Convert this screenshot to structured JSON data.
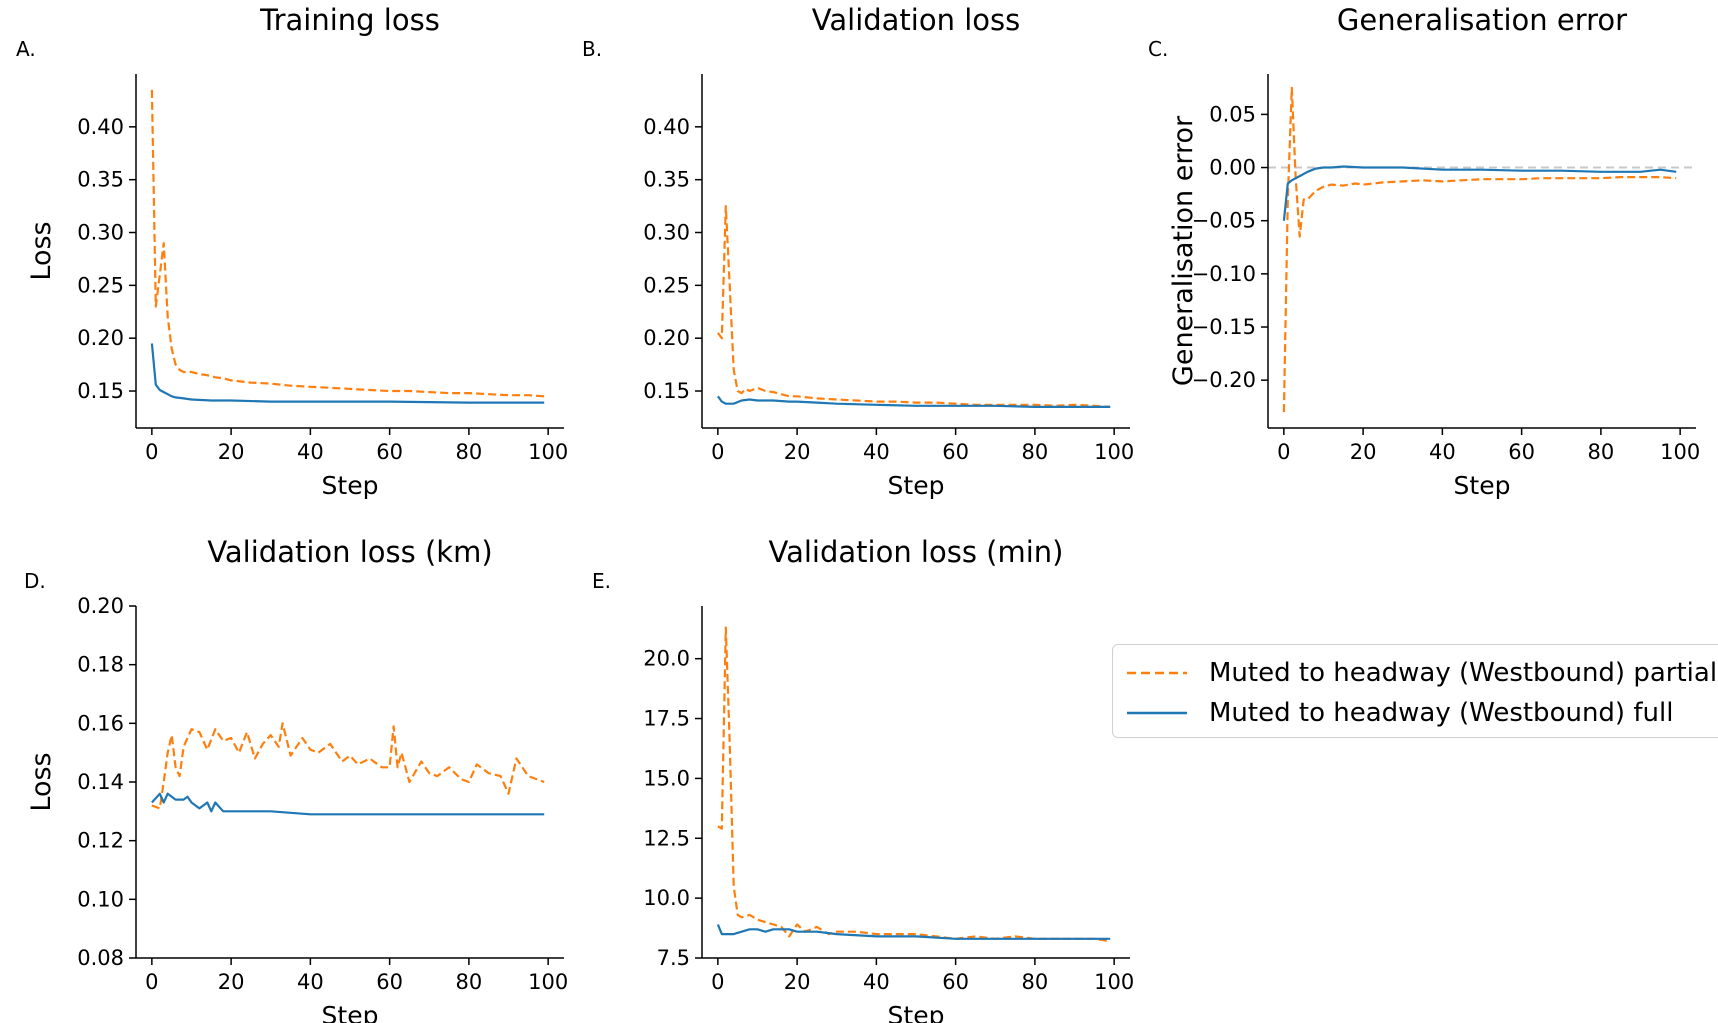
{
  "chart_data": [
    {
      "type": "line",
      "panel_label": "A.",
      "title": "Training loss",
      "xlabel": "Step",
      "ylabel": "Loss",
      "xlim": [
        -4,
        104
      ],
      "ylim": [
        0.115,
        0.45
      ],
      "xticks": [
        0,
        20,
        40,
        60,
        80,
        100
      ],
      "yticks": [
        0.15,
        0.2,
        0.25,
        0.3,
        0.35,
        0.4
      ],
      "ytick_labels": [
        "0.15",
        "0.20",
        "0.25",
        "0.30",
        "0.35",
        "0.40"
      ],
      "xtick_labels": [
        "0",
        "20",
        "40",
        "60",
        "80",
        "100"
      ],
      "series": [
        {
          "name": "Muted to headway (Westbound) partial",
          "color": "#ff7f0e",
          "dashed": true,
          "x": [
            0,
            1,
            2,
            3,
            4,
            5,
            6,
            7,
            8,
            10,
            12,
            14,
            16,
            18,
            20,
            25,
            30,
            35,
            40,
            45,
            50,
            55,
            60,
            65,
            70,
            75,
            80,
            85,
            90,
            95,
            99
          ],
          "y": [
            0.435,
            0.23,
            0.26,
            0.29,
            0.22,
            0.19,
            0.175,
            0.17,
            0.168,
            0.168,
            0.166,
            0.165,
            0.163,
            0.162,
            0.16,
            0.158,
            0.157,
            0.155,
            0.154,
            0.153,
            0.152,
            0.151,
            0.15,
            0.15,
            0.149,
            0.148,
            0.148,
            0.147,
            0.146,
            0.146,
            0.145
          ]
        },
        {
          "name": "Muted to headway (Westbound) full",
          "color": "#1f77b4",
          "dashed": false,
          "x": [
            0,
            1,
            2,
            3,
            4,
            5,
            6,
            8,
            10,
            15,
            20,
            30,
            40,
            60,
            80,
            99
          ],
          "y": [
            0.195,
            0.156,
            0.151,
            0.149,
            0.147,
            0.145,
            0.144,
            0.143,
            0.142,
            0.141,
            0.141,
            0.14,
            0.14,
            0.14,
            0.139,
            0.139
          ]
        }
      ]
    },
    {
      "type": "line",
      "panel_label": "B.",
      "title": "Validation loss",
      "xlabel": "Step",
      "ylabel": "",
      "xlim": [
        -4,
        104
      ],
      "ylim": [
        0.115,
        0.45
      ],
      "xticks": [
        0,
        20,
        40,
        60,
        80,
        100
      ],
      "yticks": [
        0.15,
        0.2,
        0.25,
        0.3,
        0.35,
        0.4
      ],
      "ytick_labels": [
        "0.15",
        "0.20",
        "0.25",
        "0.30",
        "0.35",
        "0.40"
      ],
      "xtick_labels": [
        "0",
        "20",
        "40",
        "60",
        "80",
        "100"
      ],
      "series": [
        {
          "name": "Muted to headway (Westbound) partial",
          "color": "#ff7f0e",
          "dashed": true,
          "x": [
            0,
            1,
            2,
            3,
            4,
            5,
            6,
            7,
            8,
            10,
            12,
            14,
            16,
            18,
            20,
            25,
            30,
            35,
            40,
            45,
            50,
            55,
            60,
            65,
            70,
            75,
            80,
            85,
            90,
            95,
            99
          ],
          "y": [
            0.205,
            0.2,
            0.325,
            0.25,
            0.17,
            0.15,
            0.148,
            0.152,
            0.15,
            0.153,
            0.15,
            0.149,
            0.147,
            0.145,
            0.145,
            0.143,
            0.142,
            0.141,
            0.14,
            0.14,
            0.139,
            0.139,
            0.138,
            0.137,
            0.137,
            0.137,
            0.137,
            0.136,
            0.137,
            0.136,
            0.135
          ]
        },
        {
          "name": "Muted to headway (Westbound) full",
          "color": "#1f77b4",
          "dashed": false,
          "x": [
            0,
            1,
            2,
            4,
            6,
            8,
            10,
            14,
            18,
            20,
            25,
            30,
            40,
            50,
            60,
            70,
            80,
            90,
            99
          ],
          "y": [
            0.145,
            0.14,
            0.138,
            0.138,
            0.141,
            0.142,
            0.141,
            0.141,
            0.14,
            0.14,
            0.139,
            0.138,
            0.137,
            0.136,
            0.136,
            0.136,
            0.135,
            0.135,
            0.135
          ]
        }
      ]
    },
    {
      "type": "line",
      "panel_label": "C.",
      "title": "Generalisation error",
      "xlabel": "Step",
      "ylabel": "Generalisation error",
      "xlim": [
        -4,
        104
      ],
      "ylim": [
        -0.245,
        0.088
      ],
      "xticks": [
        0,
        20,
        40,
        60,
        80,
        100
      ],
      "yticks": [
        -0.2,
        -0.15,
        -0.1,
        -0.05,
        0.0,
        0.05
      ],
      "ytick_labels": [
        "−0.20",
        "−0.15",
        "−0.10",
        "−0.05",
        "0.00",
        "0.05"
      ],
      "xtick_labels": [
        "0",
        "20",
        "40",
        "60",
        "80",
        "100"
      ],
      "reference_line": 0,
      "series": [
        {
          "name": "Muted to headway (Westbound) partial",
          "color": "#ff7f0e",
          "dashed": true,
          "x": [
            0,
            1,
            2,
            3,
            4,
            5,
            6,
            8,
            10,
            12,
            15,
            18,
            20,
            25,
            30,
            35,
            40,
            45,
            50,
            55,
            60,
            65,
            70,
            75,
            80,
            85,
            90,
            95,
            99
          ],
          "y": [
            -0.23,
            -0.03,
            0.075,
            -0.01,
            -0.065,
            -0.03,
            -0.03,
            -0.022,
            -0.018,
            -0.016,
            -0.017,
            -0.015,
            -0.016,
            -0.014,
            -0.013,
            -0.012,
            -0.013,
            -0.012,
            -0.011,
            -0.011,
            -0.011,
            -0.01,
            -0.01,
            -0.01,
            -0.01,
            -0.009,
            -0.009,
            -0.009,
            -0.01
          ]
        },
        {
          "name": "Muted to headway (Westbound) full",
          "color": "#1f77b4",
          "dashed": false,
          "x": [
            0,
            1,
            2,
            4,
            6,
            8,
            10,
            12,
            15,
            20,
            25,
            30,
            40,
            50,
            60,
            70,
            80,
            90,
            95,
            99
          ],
          "y": [
            -0.05,
            -0.015,
            -0.012,
            -0.008,
            -0.004,
            -0.001,
            0.0,
            0.0,
            0.001,
            0.0,
            0.0,
            0.0,
            -0.002,
            -0.002,
            -0.003,
            -0.003,
            -0.004,
            -0.004,
            -0.002,
            -0.004
          ]
        }
      ]
    },
    {
      "type": "line",
      "panel_label": "D.",
      "title": "Validation loss (km)",
      "xlabel": "Step",
      "ylabel": "Loss",
      "xlim": [
        -4,
        104
      ],
      "ylim": [
        0.08,
        0.2
      ],
      "xticks": [
        0,
        20,
        40,
        60,
        80,
        100
      ],
      "yticks": [
        0.08,
        0.1,
        0.12,
        0.14,
        0.16,
        0.18,
        0.2
      ],
      "ytick_labels": [
        "0.08",
        "0.10",
        "0.12",
        "0.14",
        "0.16",
        "0.18",
        "0.20"
      ],
      "xtick_labels": [
        "0",
        "20",
        "40",
        "60",
        "80",
        "100"
      ],
      "series": [
        {
          "name": "Muted to headway (Westbound) partial",
          "color": "#ff7f0e",
          "dashed": true,
          "x": [
            0,
            2,
            3,
            4,
            5,
            6,
            7,
            8,
            9,
            10,
            12,
            14,
            16,
            18,
            20,
            22,
            24,
            26,
            28,
            30,
            32,
            33,
            35,
            38,
            40,
            42,
            45,
            48,
            50,
            52,
            55,
            58,
            60,
            61,
            62,
            63,
            65,
            68,
            70,
            72,
            75,
            78,
            80,
            82,
            85,
            88,
            90,
            92,
            95,
            99
          ],
          "y": [
            0.132,
            0.131,
            0.14,
            0.15,
            0.156,
            0.145,
            0.142,
            0.152,
            0.155,
            0.158,
            0.157,
            0.151,
            0.158,
            0.154,
            0.155,
            0.15,
            0.157,
            0.148,
            0.153,
            0.156,
            0.152,
            0.16,
            0.149,
            0.155,
            0.151,
            0.15,
            0.153,
            0.147,
            0.149,
            0.146,
            0.148,
            0.145,
            0.145,
            0.159,
            0.145,
            0.15,
            0.14,
            0.147,
            0.143,
            0.142,
            0.145,
            0.141,
            0.14,
            0.146,
            0.143,
            0.142,
            0.136,
            0.148,
            0.142,
            0.14
          ]
        },
        {
          "name": "Muted to headway (Westbound) full",
          "color": "#1f77b4",
          "dashed": false,
          "x": [
            0,
            2,
            3,
            4,
            6,
            8,
            9,
            10,
            12,
            14,
            15,
            16,
            18,
            20,
            25,
            30,
            40,
            50,
            60,
            70,
            80,
            90,
            99
          ],
          "y": [
            0.133,
            0.136,
            0.133,
            0.136,
            0.134,
            0.134,
            0.135,
            0.133,
            0.131,
            0.133,
            0.13,
            0.133,
            0.13,
            0.13,
            0.13,
            0.13,
            0.129,
            0.129,
            0.129,
            0.129,
            0.129,
            0.129,
            0.129
          ]
        }
      ]
    },
    {
      "type": "line",
      "panel_label": "E.",
      "title": "Validation loss (min)",
      "xlabel": "Step",
      "ylabel": "",
      "xlim": [
        -4,
        104
      ],
      "ylim": [
        7.5,
        22.2
      ],
      "xticks": [
        0,
        20,
        40,
        60,
        80,
        100
      ],
      "yticks": [
        7.5,
        10.0,
        12.5,
        15.0,
        17.5,
        20.0
      ],
      "ytick_labels": [
        "7.5",
        "10.0",
        "12.5",
        "15.0",
        "17.5",
        "20.0"
      ],
      "xtick_labels": [
        "0",
        "20",
        "40",
        "60",
        "80",
        "100"
      ],
      "series": [
        {
          "name": "Muted to headway (Westbound) partial",
          "color": "#ff7f0e",
          "dashed": true,
          "x": [
            0,
            1,
            2,
            3,
            4,
            5,
            6,
            8,
            10,
            12,
            14,
            16,
            18,
            20,
            22,
            25,
            28,
            30,
            35,
            40,
            45,
            50,
            55,
            60,
            65,
            70,
            75,
            80,
            85,
            90,
            95,
            99
          ],
          "y": [
            13.0,
            12.9,
            21.3,
            16.5,
            10.5,
            9.3,
            9.2,
            9.3,
            9.1,
            9.0,
            8.9,
            8.8,
            8.4,
            8.9,
            8.6,
            8.8,
            8.5,
            8.6,
            8.6,
            8.5,
            8.5,
            8.5,
            8.4,
            8.3,
            8.4,
            8.3,
            8.4,
            8.3,
            8.3,
            8.3,
            8.3,
            8.2
          ]
        },
        {
          "name": "Muted to headway (Westbound) full",
          "color": "#1f77b4",
          "dashed": false,
          "x": [
            0,
            1,
            2,
            4,
            6,
            8,
            10,
            12,
            14,
            16,
            18,
            20,
            25,
            30,
            40,
            50,
            60,
            70,
            80,
            90,
            99
          ],
          "y": [
            8.9,
            8.5,
            8.5,
            8.5,
            8.6,
            8.7,
            8.7,
            8.6,
            8.7,
            8.7,
            8.7,
            8.6,
            8.6,
            8.5,
            8.4,
            8.4,
            8.3,
            8.3,
            8.3,
            8.3,
            8.3
          ]
        }
      ]
    }
  ],
  "legend": {
    "items": [
      {
        "label": "Muted to headway (Westbound) partial",
        "color": "#ff7f0e",
        "dashed": true
      },
      {
        "label": "Muted to headway (Westbound) full",
        "color": "#1f77b4",
        "dashed": false
      }
    ]
  }
}
